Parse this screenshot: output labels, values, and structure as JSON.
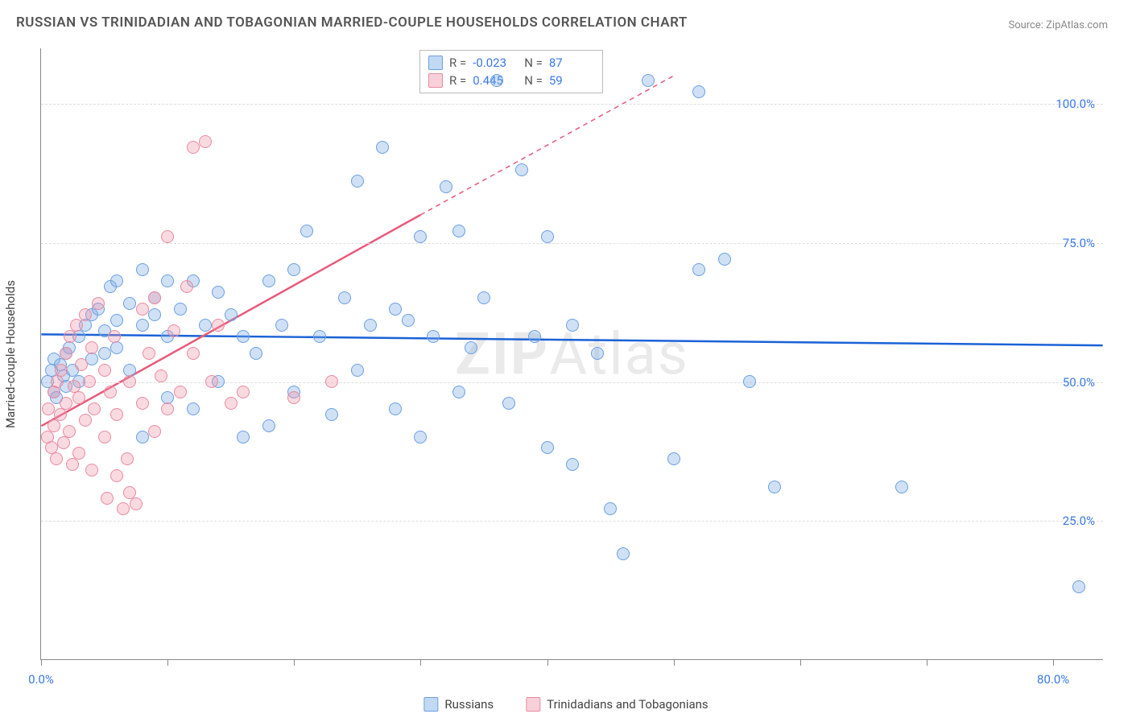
{
  "title": "RUSSIAN VS TRINIDADIAN AND TOBAGONIAN MARRIED-COUPLE HOUSEHOLDS CORRELATION CHART",
  "source": "Source: ZipAtlas.com",
  "watermark_prefix": "ZIP",
  "watermark_suffix": "Atlas",
  "ylabel": "Married-couple Households",
  "chart": {
    "type": "scatter",
    "xlim": [
      0,
      84
    ],
    "ylim": [
      0,
      110
    ],
    "background_color": "#ffffff",
    "grid_color": "#dddddd",
    "grid_dash": "4,4",
    "axis_color": "#888888",
    "ytick_positions": [
      25,
      50,
      75,
      100
    ],
    "ytick_labels": [
      "25.0%",
      "50.0%",
      "75.0%",
      "100.0%"
    ],
    "xtick_positions": [
      0,
      10,
      20,
      30,
      40,
      50,
      60,
      70,
      80
    ],
    "xtick_labels_shown": {
      "0": "0.0%",
      "80": "80.0%"
    },
    "series": [
      {
        "name": "Russians",
        "color_fill": "rgba(120,170,230,0.35)",
        "color_stroke": "#6b9fe0",
        "marker": "circle",
        "marker_size": 16,
        "R": "-0.023",
        "N": "87",
        "trend": {
          "x1": 0,
          "y1": 58.5,
          "x2": 84,
          "y2": 56.5,
          "color": "#1a62d6",
          "width": 2.5,
          "dash": null
        },
        "points": [
          [
            0.5,
            50
          ],
          [
            0.8,
            52
          ],
          [
            1,
            48
          ],
          [
            1,
            54
          ],
          [
            1.2,
            47
          ],
          [
            1.5,
            53
          ],
          [
            1.8,
            51
          ],
          [
            2,
            49
          ],
          [
            2,
            55
          ],
          [
            2.2,
            56
          ],
          [
            2.5,
            52
          ],
          [
            3,
            50
          ],
          [
            3,
            58
          ],
          [
            3.5,
            60
          ],
          [
            4,
            54
          ],
          [
            4,
            62
          ],
          [
            4.5,
            63
          ],
          [
            5,
            55
          ],
          [
            5,
            59
          ],
          [
            5.5,
            67
          ],
          [
            6,
            56
          ],
          [
            6,
            61
          ],
          [
            6,
            68
          ],
          [
            7,
            52
          ],
          [
            7,
            64
          ],
          [
            8,
            40
          ],
          [
            8,
            60
          ],
          [
            8,
            70
          ],
          [
            9,
            62
          ],
          [
            9,
            65
          ],
          [
            10,
            47
          ],
          [
            10,
            58
          ],
          [
            10,
            68
          ],
          [
            11,
            63
          ],
          [
            12,
            45
          ],
          [
            12,
            68
          ],
          [
            13,
            60
          ],
          [
            14,
            50
          ],
          [
            14,
            66
          ],
          [
            15,
            62
          ],
          [
            16,
            40
          ],
          [
            16,
            58
          ],
          [
            17,
            55
          ],
          [
            18,
            42
          ],
          [
            18,
            68
          ],
          [
            19,
            60
          ],
          [
            20,
            48
          ],
          [
            20,
            70
          ],
          [
            21,
            77
          ],
          [
            22,
            58
          ],
          [
            23,
            44
          ],
          [
            24,
            65
          ],
          [
            25,
            52
          ],
          [
            25,
            86
          ],
          [
            26,
            60
          ],
          [
            27,
            92
          ],
          [
            28,
            45
          ],
          [
            28,
            63
          ],
          [
            29,
            61
          ],
          [
            30,
            40
          ],
          [
            30,
            76
          ],
          [
            31,
            58
          ],
          [
            32,
            85
          ],
          [
            33,
            48
          ],
          [
            33,
            77
          ],
          [
            34,
            56
          ],
          [
            35,
            65
          ],
          [
            36,
            104
          ],
          [
            37,
            46
          ],
          [
            38,
            88
          ],
          [
            39,
            58
          ],
          [
            40,
            38
          ],
          [
            40,
            76
          ],
          [
            42,
            35
          ],
          [
            42,
            60
          ],
          [
            44,
            55
          ],
          [
            45,
            27
          ],
          [
            46,
            19
          ],
          [
            48,
            104
          ],
          [
            50,
            36
          ],
          [
            52,
            102
          ],
          [
            52,
            70
          ],
          [
            54,
            72
          ],
          [
            56,
            50
          ],
          [
            58,
            31
          ],
          [
            68,
            31
          ],
          [
            82,
            13
          ]
        ]
      },
      {
        "name": "Trinidadians and Tobagonians",
        "color_fill": "rgba(240,150,170,0.35)",
        "color_stroke": "#e88aa0",
        "marker": "circle",
        "marker_size": 16,
        "R": "0.445",
        "N": "59",
        "trend": {
          "x1": 0,
          "y1": 42,
          "x2": 30,
          "y2": 80,
          "color": "#e95a7a",
          "width": 2.5,
          "dash": null
        },
        "trend_ext": {
          "x1": 30,
          "y1": 80,
          "x2": 50,
          "y2": 105,
          "color": "#e95a7a",
          "width": 1.5,
          "dash": "6,5"
        },
        "points": [
          [
            0.5,
            40
          ],
          [
            0.6,
            45
          ],
          [
            0.8,
            38
          ],
          [
            1,
            42
          ],
          [
            1,
            48
          ],
          [
            1.2,
            36
          ],
          [
            1.3,
            50
          ],
          [
            1.5,
            44
          ],
          [
            1.6,
            52
          ],
          [
            1.8,
            39
          ],
          [
            2,
            46
          ],
          [
            2,
            55
          ],
          [
            2.2,
            41
          ],
          [
            2.3,
            58
          ],
          [
            2.5,
            35
          ],
          [
            2.6,
            49
          ],
          [
            2.8,
            60
          ],
          [
            3,
            37
          ],
          [
            3,
            47
          ],
          [
            3.2,
            53
          ],
          [
            3.5,
            43
          ],
          [
            3.5,
            62
          ],
          [
            3.8,
            50
          ],
          [
            4,
            34
          ],
          [
            4,
            56
          ],
          [
            4.2,
            45
          ],
          [
            4.5,
            64
          ],
          [
            5,
            40
          ],
          [
            5,
            52
          ],
          [
            5.2,
            29
          ],
          [
            5.5,
            48
          ],
          [
            5.8,
            58
          ],
          [
            6,
            33
          ],
          [
            6,
            44
          ],
          [
            6.5,
            27
          ],
          [
            6.8,
            36
          ],
          [
            7,
            30
          ],
          [
            7,
            50
          ],
          [
            7.5,
            28
          ],
          [
            8,
            46
          ],
          [
            8,
            63
          ],
          [
            8.5,
            55
          ],
          [
            9,
            41
          ],
          [
            9,
            65
          ],
          [
            9.5,
            51
          ],
          [
            10,
            45
          ],
          [
            10,
            76
          ],
          [
            10.5,
            59
          ],
          [
            11,
            48
          ],
          [
            11.5,
            67
          ],
          [
            12,
            92
          ],
          [
            12,
            55
          ],
          [
            13,
            93
          ],
          [
            13.5,
            50
          ],
          [
            14,
            60
          ],
          [
            15,
            46
          ],
          [
            16,
            48
          ],
          [
            20,
            47
          ],
          [
            23,
            50
          ]
        ]
      }
    ]
  },
  "bottom_legend": [
    {
      "label": "Russians",
      "swatch": "blue"
    },
    {
      "label": "Trinidadians and Tobagonians",
      "swatch": "pink"
    }
  ]
}
